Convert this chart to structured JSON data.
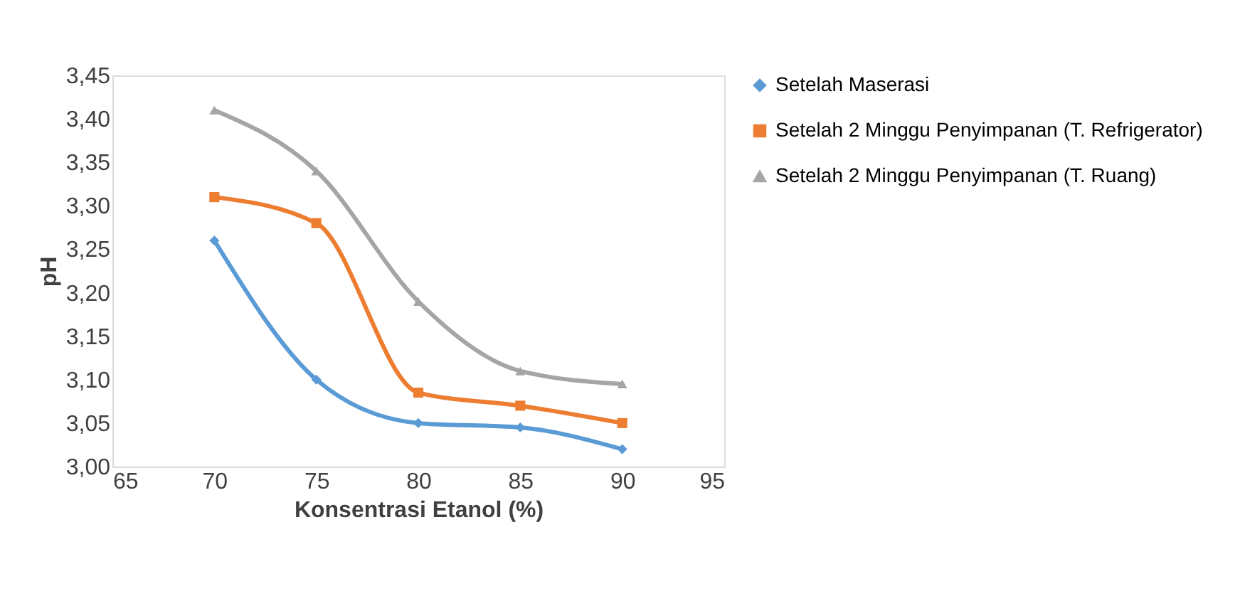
{
  "chart_data": {
    "type": "line",
    "xlabel": "Konsentrasi Etanol (%)",
    "ylabel": "pH",
    "x": [
      70,
      75,
      80,
      85,
      90
    ],
    "series": [
      {
        "name": "Setelah Maserasi",
        "color": "#5b9bd5",
        "marker": "diamond",
        "values": [
          3.26,
          3.1,
          3.05,
          3.045,
          3.02
        ]
      },
      {
        "name": "Setelah 2 Minggu Penyimpanan (T. Refrigerator)",
        "color": "#ed7d31",
        "marker": "square",
        "values": [
          3.31,
          3.28,
          3.085,
          3.07,
          3.05
        ]
      },
      {
        "name": "Setelah 2 Minggu Penyimpanan (T. Ruang)",
        "color": "#a5a5a5",
        "marker": "triangle",
        "values": [
          3.41,
          3.34,
          3.19,
          3.11,
          3.095
        ]
      }
    ],
    "xlim": [
      65,
      95
    ],
    "xticks": [
      65,
      70,
      75,
      80,
      85,
      90,
      95
    ],
    "ylim": [
      3.0,
      3.45
    ],
    "yticks": [
      {
        "value": 3.0,
        "label": "3,00"
      },
      {
        "value": 3.05,
        "label": "3,05"
      },
      {
        "value": 3.1,
        "label": "3,10"
      },
      {
        "value": 3.15,
        "label": "3,15"
      },
      {
        "value": 3.2,
        "label": "3,20"
      },
      {
        "value": 3.25,
        "label": "3,25"
      },
      {
        "value": 3.3,
        "label": "3,30"
      },
      {
        "value": 3.35,
        "label": "3,35"
      },
      {
        "value": 3.4,
        "label": "3,40"
      },
      {
        "value": 3.45,
        "label": "3,45"
      }
    ],
    "grid": false,
    "legend": "right",
    "line_style": "solid"
  }
}
